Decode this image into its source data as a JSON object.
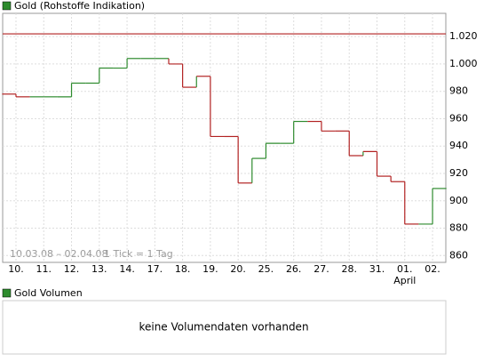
{
  "chart_data": {
    "type": "ohlc",
    "title": "Gold (Rohstoffe Indikation)",
    "categories": [
      "10.",
      "11.",
      "12.",
      "13.",
      "14.",
      "17.",
      "18.",
      "19.",
      "20.",
      "25.",
      "26.",
      "27.",
      "28.",
      "31.",
      "01.",
      "02."
    ],
    "x_sublabels": [
      null,
      null,
      null,
      null,
      null,
      null,
      null,
      null,
      null,
      null,
      null,
      null,
      null,
      null,
      "April",
      null
    ],
    "open": [
      978,
      976,
      976,
      986,
      997,
      1004,
      1000,
      991,
      947,
      931,
      942,
      958,
      951,
      936,
      914,
      883
    ],
    "close": [
      976,
      976,
      986,
      997,
      1004,
      1004,
      983,
      947,
      913,
      942,
      958,
      951,
      933,
      918,
      883,
      909
    ],
    "up_color": "#2e8b2e",
    "down_color": "#b22222",
    "reference_line": 1022,
    "reference_color": "#b22222",
    "ylim": [
      855,
      1037
    ],
    "yticks": [
      860,
      880,
      900,
      920,
      940,
      960,
      980,
      {
        "value": 1000,
        "label": "1.000"
      },
      {
        "value": 1020,
        "label": "1.020"
      }
    ],
    "grid": true,
    "legend_color": "#2e8b2e",
    "annotations": [
      "10.03.08 – 02.04.08",
      "1 Tick = 1 Tag"
    ]
  },
  "volume_panel": {
    "title": "Gold Volumen",
    "message": "keine Volumendaten vorhanden",
    "legend_color": "#2e8b2e"
  }
}
